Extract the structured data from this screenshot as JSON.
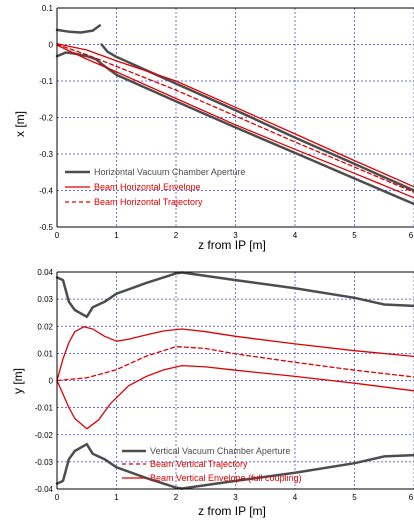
{
  "chart_data": [
    {
      "type": "line",
      "xlabel": "z from IP [m]",
      "ylabel": "x [m]",
      "xlim": [
        0,
        6
      ],
      "ylim": [
        -0.5,
        0.1
      ],
      "xticks": [
        "0",
        "1",
        "2",
        "3",
        "4",
        "5",
        "6"
      ],
      "yticks": [
        "0.1",
        "0",
        "-0.1",
        "-0.2",
        "-0.3",
        "-0.4",
        "-0.5"
      ],
      "grid": true,
      "legend_position": "bottom-left",
      "series": [
        {
          "name": "Horizontal Vacuum Chamber Aperture",
          "color": "#4d4d4d",
          "style": "solid",
          "segments": [
            {
              "x": [
                0,
                0.2,
                0.4,
                0.6,
                0.72
              ],
              "y": [
                0.04,
                0.035,
                0.033,
                0.038,
                0.052
              ]
            },
            {
              "x": [
                0,
                0.15,
                0.3,
                0.5,
                0.65,
                0.78,
                1.0,
                2.0,
                3.0,
                4.0,
                5.0,
                6.0
              ],
              "y": [
                -0.032,
                -0.022,
                -0.025,
                -0.032,
                -0.04,
                -0.057,
                -0.083,
                -0.156,
                -0.227,
                -0.297,
                -0.367,
                -0.437
              ]
            },
            {
              "x": [
                0.75,
                0.85,
                1.0,
                2.0,
                3.0,
                4.0,
                5.0,
                6.0
              ],
              "y": [
                0.0,
                -0.02,
                -0.034,
                -0.107,
                -0.18,
                -0.255,
                -0.327,
                -0.4
              ]
            }
          ]
        },
        {
          "name": "Beam Horizontal Envelope",
          "color": "#e00000",
          "style": "solid",
          "segments": [
            {
              "x": [
                0,
                0.5,
                1,
                2,
                3,
                4,
                5,
                6
              ],
              "y": [
                0.002,
                -0.015,
                -0.045,
                -0.1,
                -0.172,
                -0.245,
                -0.318,
                -0.39
              ]
            },
            {
              "x": [
                0,
                0.5,
                1,
                2,
                3,
                4,
                5,
                6
              ],
              "y": [
                -0.002,
                -0.04,
                -0.075,
                -0.148,
                -0.22,
                -0.287,
                -0.353,
                -0.42
              ]
            }
          ]
        },
        {
          "name": "Beam Horizontal Trajectory",
          "color": "#e00000",
          "style": "dashed",
          "segments": [
            {
              "x": [
                0,
                0.5,
                1,
                2,
                3,
                4,
                5,
                6
              ],
              "y": [
                0,
                -0.028,
                -0.06,
                -0.125,
                -0.196,
                -0.267,
                -0.336,
                -0.405
              ]
            }
          ]
        }
      ]
    },
    {
      "type": "line",
      "xlabel": "z from IP [m]",
      "ylabel": "y [m]",
      "xlim": [
        0,
        6
      ],
      "ylim": [
        -0.04,
        0.04
      ],
      "xticks": [
        "0",
        "1",
        "2",
        "3",
        "4",
        "5",
        "6"
      ],
      "yticks": [
        "0.04",
        "0.03",
        "0.02",
        "0.01",
        "0",
        "-0.01",
        "-0.02",
        "-0.03",
        "-0.04"
      ],
      "grid": true,
      "legend_position": "bottom-center",
      "series": [
        {
          "name": "Vertical Vacuum Chamber Aperture",
          "color": "#4d4d4d",
          "style": "solid",
          "segments": [
            {
              "x": [
                0,
                0.1,
                0.2,
                0.3,
                0.5,
                0.6,
                0.8,
                1.0,
                1.5,
                2.0,
                2.1,
                3.0,
                4.0,
                5.0,
                5.5,
                6.0
              ],
              "y": [
                0.038,
                0.037,
                0.029,
                0.026,
                0.0235,
                0.027,
                0.029,
                0.032,
                0.036,
                0.0395,
                0.0398,
                0.037,
                0.034,
                0.0305,
                0.028,
                0.0275
              ]
            },
            {
              "x": [
                0,
                0.1,
                0.2,
                0.3,
                0.5,
                0.6,
                0.8,
                1.0,
                1.5,
                2.0,
                2.1,
                3.0,
                4.0,
                5.0,
                5.5,
                6.0
              ],
              "y": [
                -0.038,
                -0.037,
                -0.029,
                -0.026,
                -0.0235,
                -0.027,
                -0.029,
                -0.032,
                -0.036,
                -0.0395,
                -0.0398,
                -0.037,
                -0.034,
                -0.0305,
                -0.028,
                -0.0275
              ]
            }
          ]
        },
        {
          "name": "Beam Vertical Trajectory",
          "color": "#e00000",
          "style": "dashed",
          "segments": [
            {
              "x": [
                0,
                0.5,
                1.0,
                1.5,
                2.0,
                2.5,
                3.0,
                4.0,
                5.0,
                6.0
              ],
              "y": [
                0,
                0.001,
                0.004,
                0.009,
                0.0125,
                0.0118,
                0.0098,
                0.0067,
                0.0038,
                0.0013
              ]
            }
          ]
        },
        {
          "name": "Beam Vertical Envelope (full coupling)",
          "color": "#e00000",
          "style": "solid",
          "segments": [
            {
              "x": [
                0,
                0.1,
                0.2,
                0.3,
                0.45,
                0.6,
                0.8,
                1.0,
                1.2,
                1.5,
                1.8,
                2.1,
                2.5,
                3.0,
                4.0,
                5.0,
                6.0
              ],
              "y": [
                0,
                0.008,
                0.014,
                0.018,
                0.0198,
                0.019,
                0.0163,
                0.0145,
                0.0152,
                0.0168,
                0.0183,
                0.019,
                0.018,
                0.0163,
                0.0135,
                0.011,
                0.0089
              ]
            },
            {
              "x": [
                0,
                0.1,
                0.2,
                0.3,
                0.5,
                0.7,
                0.9,
                1.2,
                1.5,
                1.8,
                2.1,
                2.5,
                3.0,
                4.0,
                5.0,
                6.0
              ],
              "y": [
                0,
                -0.005,
                -0.01,
                -0.014,
                -0.0178,
                -0.0145,
                -0.0085,
                -0.002,
                0.0015,
                0.004,
                0.0055,
                0.005,
                0.0038,
                0.0015,
                -0.001,
                -0.0038
              ]
            }
          ]
        }
      ]
    }
  ]
}
